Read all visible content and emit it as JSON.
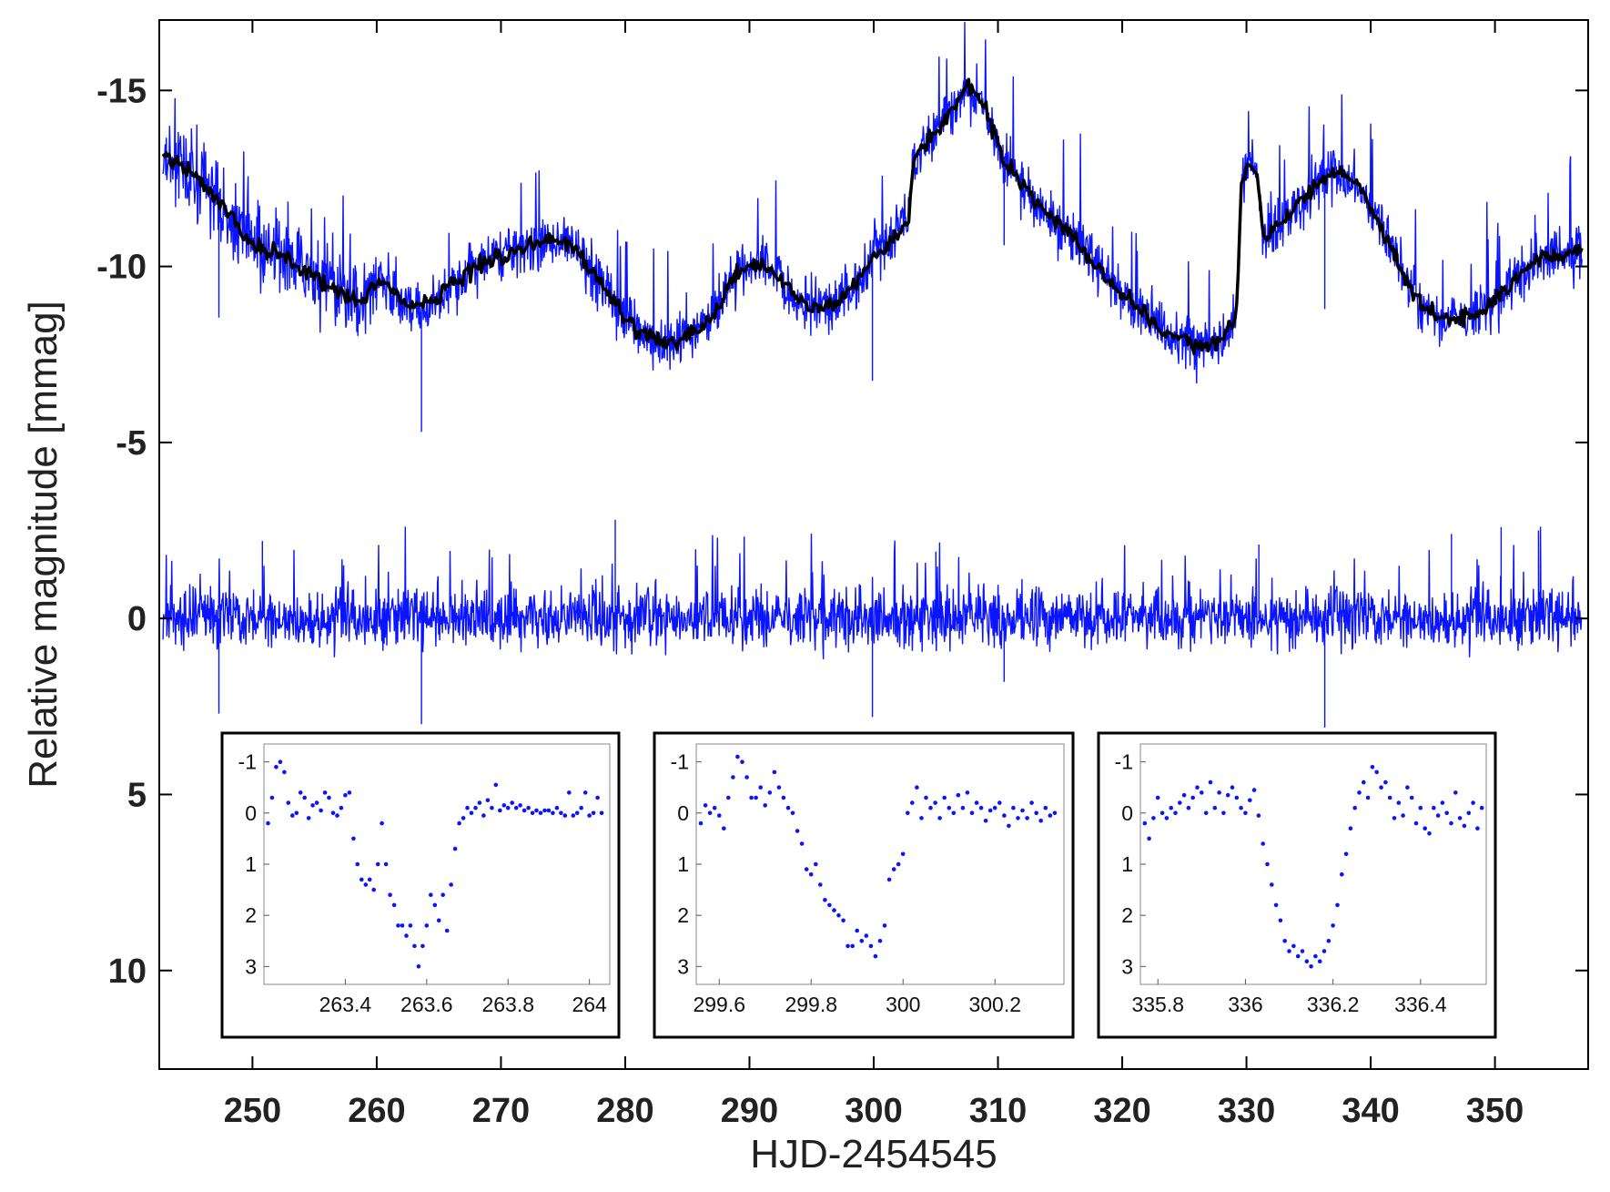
{
  "chart_data": [
    {
      "type": "line",
      "title": "",
      "xlabel": "HJD-2454545",
      "ylabel": "Relative magnitude [mmag]",
      "xlim": [
        242.5,
        357.5
      ],
      "ylim": [
        12.8,
        -17
      ],
      "y_inverted": true,
      "grid": false,
      "legend": "none",
      "xticks": [
        250,
        260,
        270,
        280,
        290,
        300,
        310,
        320,
        330,
        340,
        350
      ],
      "xtick_labels": [
        "250",
        "260",
        "270",
        "280",
        "290",
        "300",
        "310",
        "320",
        "330",
        "340",
        "350"
      ],
      "yticks": [
        -15,
        -10,
        -5,
        0,
        5,
        10
      ],
      "ytick_labels": [
        "-15",
        "-10",
        "-5",
        "0",
        "5",
        "10"
      ],
      "series": [
        {
          "role": "raw light curve",
          "color": "#0a14ff",
          "x": [
            242.8,
            245,
            247,
            249,
            250.5,
            252,
            254,
            256,
            258,
            259,
            260,
            261,
            262,
            263,
            264,
            265,
            266,
            268,
            270,
            272,
            274,
            275.5,
            277,
            278.5,
            280,
            281.5,
            283,
            284.5,
            286,
            287.5,
            288.5,
            290,
            291.5,
            292.5,
            294,
            295.5,
            297,
            298.5,
            300,
            301.5,
            302.8,
            303.2,
            304.5,
            306,
            307.5,
            309,
            310.5,
            312,
            314,
            316,
            318,
            320,
            322,
            324,
            326,
            328,
            329.2,
            329.6,
            330.2,
            330.8,
            331.4,
            333,
            335,
            337,
            339,
            341,
            343,
            344.5,
            346,
            348,
            349.5,
            351,
            352.5,
            354,
            356,
            357
          ],
          "y": [
            -13.2,
            -12.7,
            -12.0,
            -11.0,
            -10.5,
            -10.4,
            -9.9,
            -9.5,
            -9.1,
            -9.0,
            -9.6,
            -9.4,
            -9.0,
            -8.9,
            -8.9,
            -9.1,
            -9.5,
            -10.0,
            -10.3,
            -10.6,
            -10.8,
            -10.6,
            -10.0,
            -9.3,
            -8.5,
            -8.0,
            -7.8,
            -8.0,
            -8.2,
            -8.8,
            -9.6,
            -10.0,
            -10.0,
            -9.6,
            -9.0,
            -8.8,
            -9.0,
            -9.5,
            -10.2,
            -10.8,
            -11.3,
            -13.0,
            -13.6,
            -14.3,
            -15.1,
            -14.5,
            -13.0,
            -12.3,
            -11.5,
            -10.8,
            -10.0,
            -9.2,
            -8.6,
            -8.0,
            -7.7,
            -7.9,
            -8.6,
            -12.4,
            -12.9,
            -12.6,
            -10.8,
            -11.3,
            -12.1,
            -12.7,
            -12.3,
            -11.0,
            -9.5,
            -8.7,
            -8.5,
            -8.6,
            -8.8,
            -9.4,
            -9.9,
            -10.3,
            -10.4,
            -10.5
          ]
        },
        {
          "role": "smoothed fit",
          "color": "#000000",
          "x": [
            242.8,
            245,
            247,
            249,
            250.5,
            252,
            254,
            256,
            258,
            259,
            260,
            261,
            262,
            263,
            264,
            265,
            266,
            268,
            270,
            272,
            274,
            275.5,
            277,
            278.5,
            280,
            281.5,
            283,
            284.5,
            286,
            287.5,
            288.5,
            290,
            291.5,
            292.5,
            294,
            295.5,
            297,
            298.5,
            300,
            301.5,
            302.8,
            303.2,
            304.5,
            306,
            307.5,
            309,
            310.5,
            312,
            314,
            316,
            318,
            320,
            322,
            324,
            326,
            328,
            329.2,
            329.6,
            330.2,
            330.8,
            331.4,
            333,
            335,
            337,
            339,
            341,
            343,
            344.5,
            346,
            348,
            349.5,
            351,
            352.5,
            354,
            356,
            357
          ],
          "y": [
            -13.2,
            -12.7,
            -12.0,
            -11.0,
            -10.5,
            -10.4,
            -9.9,
            -9.5,
            -9.1,
            -9.0,
            -9.6,
            -9.4,
            -9.0,
            -8.9,
            -8.9,
            -9.1,
            -9.5,
            -10.0,
            -10.3,
            -10.6,
            -10.8,
            -10.6,
            -10.0,
            -9.3,
            -8.5,
            -8.0,
            -7.8,
            -8.0,
            -8.2,
            -8.8,
            -9.6,
            -10.0,
            -10.0,
            -9.6,
            -9.0,
            -8.8,
            -9.0,
            -9.5,
            -10.2,
            -10.8,
            -11.3,
            -13.0,
            -13.6,
            -14.3,
            -15.1,
            -14.5,
            -13.0,
            -12.3,
            -11.5,
            -10.8,
            -10.0,
            -9.2,
            -8.6,
            -8.0,
            -7.7,
            -7.9,
            -8.6,
            -12.4,
            -12.9,
            -12.6,
            -10.8,
            -11.3,
            -12.1,
            -12.7,
            -12.3,
            -11.0,
            -9.5,
            -8.7,
            -8.5,
            -8.6,
            -8.8,
            -9.4,
            -9.9,
            -10.3,
            -10.4,
            -10.5
          ]
        },
        {
          "role": "residuals",
          "color": "#0a14ff",
          "baseline": 0,
          "eclipse_dips": [
            [
              247.3,
              2.7
            ],
            [
              263.6,
              3.0
            ],
            [
              299.9,
              2.8
            ],
            [
              310.5,
              1.8
            ],
            [
              336.3,
              3.1
            ]
          ],
          "spikes": [
            [
              279.2,
              -2.8
            ],
            [
              250.8,
              -2.2
            ],
            [
              305,
              -1.9
            ],
            [
              331,
              -2.1
            ],
            [
              346.5,
              -2.4
            ],
            [
              350.5,
              -2.6
            ],
            [
              353.5,
              -2.5
            ]
          ]
        }
      ]
    },
    {
      "type": "scatter",
      "panel": "inset-1",
      "color": "#0a14ff",
      "xlim": [
        263.2,
        264.05
      ],
      "ylim": [
        -1.35,
        3.35
      ],
      "y_inverted": true,
      "xticks": [
        263.4,
        263.6,
        263.8,
        264
      ],
      "xtick_labels": [
        "263.4",
        "263.6",
        "263.8",
        "264"
      ],
      "yticks": [
        -1,
        0,
        1,
        2,
        3
      ],
      "ytick_labels": [
        "-1",
        "0",
        "1",
        "2",
        "3"
      ],
      "x": [
        263.21,
        263.22,
        263.23,
        263.24,
        263.25,
        263.26,
        263.27,
        263.28,
        263.29,
        263.3,
        263.31,
        263.32,
        263.33,
        263.34,
        263.35,
        263.36,
        263.37,
        263.38,
        263.39,
        263.4,
        263.41,
        263.42,
        263.43,
        263.44,
        263.45,
        263.46,
        263.47,
        263.48,
        263.49,
        263.5,
        263.51,
        263.52,
        263.53,
        263.54,
        263.55,
        263.56,
        263.57,
        263.58,
        263.59,
        263.6,
        263.61,
        263.62,
        263.63,
        263.64,
        263.65,
        263.66,
        263.67,
        263.68,
        263.69,
        263.7,
        263.71,
        263.72,
        263.73,
        263.74,
        263.75,
        263.76,
        263.77,
        263.78,
        263.79,
        263.8,
        263.81,
        263.82,
        263.83,
        263.84,
        263.85,
        263.86,
        263.87,
        263.88,
        263.89,
        263.9,
        263.91,
        263.92,
        263.93,
        263.94,
        263.95,
        263.96,
        263.97,
        263.98,
        263.99,
        264.0,
        264.01,
        264.02,
        264.03
      ],
      "y": [
        0.2,
        -0.3,
        -0.9,
        -1.0,
        -0.8,
        -0.2,
        0.05,
        0.0,
        -0.4,
        -0.3,
        0.1,
        -0.15,
        -0.2,
        -0.05,
        -0.4,
        -0.3,
        0.0,
        0.05,
        -0.1,
        -0.35,
        -0.4,
        0.5,
        1.0,
        1.3,
        1.4,
        1.3,
        1.5,
        1.0,
        0.2,
        1.0,
        1.6,
        1.8,
        2.2,
        2.2,
        2.4,
        2.2,
        2.6,
        3.0,
        2.6,
        2.2,
        1.6,
        1.8,
        2.1,
        1.6,
        2.3,
        1.4,
        0.7,
        0.2,
        0.1,
        -0.1,
        0.0,
        -0.1,
        -0.2,
        0.05,
        -0.25,
        -0.1,
        -0.55,
        -0.05,
        -0.15,
        -0.1,
        -0.2,
        -0.1,
        -0.15,
        -0.05,
        -0.1,
        0.0,
        -0.05,
        0.0,
        -0.05,
        -0.05,
        0.0,
        -0.1,
        0.0,
        0.05,
        -0.4,
        0.05,
        0.0,
        -0.1,
        -0.4,
        0.05,
        0.0,
        -0.3,
        0.0
      ]
    },
    {
      "type": "scatter",
      "panel": "inset-2",
      "color": "#0a14ff",
      "xlim": [
        299.55,
        300.35
      ],
      "ylim": [
        -1.35,
        3.35
      ],
      "y_inverted": true,
      "xticks": [
        299.6,
        299.8,
        300,
        300.2
      ],
      "xtick_labels": [
        "299.6",
        "299.8",
        "300",
        "300.2"
      ],
      "yticks": [
        -1,
        0,
        1,
        2,
        3
      ],
      "ytick_labels": [
        "-1",
        "0",
        "1",
        "2",
        "3"
      ],
      "x": [
        299.56,
        299.57,
        299.58,
        299.59,
        299.6,
        299.61,
        299.62,
        299.63,
        299.64,
        299.65,
        299.66,
        299.67,
        299.68,
        299.69,
        299.7,
        299.71,
        299.72,
        299.73,
        299.74,
        299.75,
        299.76,
        299.77,
        299.78,
        299.79,
        299.8,
        299.81,
        299.82,
        299.83,
        299.84,
        299.85,
        299.86,
        299.87,
        299.88,
        299.89,
        299.9,
        299.91,
        299.92,
        299.93,
        299.94,
        299.95,
        299.96,
        299.97,
        299.98,
        299.99,
        300.0,
        300.01,
        300.02,
        300.03,
        300.04,
        300.05,
        300.06,
        300.07,
        300.08,
        300.09,
        300.1,
        300.11,
        300.12,
        300.13,
        300.14,
        300.15,
        300.16,
        300.17,
        300.18,
        300.19,
        300.2,
        300.21,
        300.22,
        300.23,
        300.24,
        300.25,
        300.26,
        300.27,
        300.28,
        300.29,
        300.3,
        300.31,
        300.32,
        300.33
      ],
      "y": [
        0.2,
        -0.15,
        0.0,
        -0.1,
        0.05,
        0.3,
        -0.3,
        -0.7,
        -1.1,
        -1.0,
        -0.7,
        -0.3,
        -0.3,
        -0.5,
        -0.15,
        -0.4,
        -0.8,
        -0.5,
        -0.3,
        -0.1,
        0.0,
        0.35,
        0.6,
        1.1,
        1.2,
        1.0,
        1.4,
        1.7,
        1.8,
        1.9,
        2.0,
        2.1,
        2.6,
        2.6,
        2.3,
        2.5,
        2.4,
        2.6,
        2.8,
        2.5,
        2.2,
        1.3,
        1.1,
        1.0,
        0.8,
        0.0,
        -0.2,
        -0.5,
        0.1,
        -0.3,
        -0.1,
        -0.2,
        0.1,
        -0.3,
        -0.1,
        0.0,
        -0.35,
        -0.1,
        -0.4,
        0.0,
        -0.2,
        -0.1,
        0.15,
        -0.05,
        -0.1,
        -0.2,
        0.05,
        0.25,
        -0.1,
        0.1,
        -0.05,
        0.1,
        -0.2,
        0.0,
        0.15,
        -0.1,
        0.05,
        0.0
      ]
    },
    {
      "type": "scatter",
      "panel": "inset-3",
      "color": "#0a14ff",
      "xlim": [
        335.76,
        336.55
      ],
      "ylim": [
        -1.35,
        3.35
      ],
      "y_inverted": true,
      "xticks": [
        335.8,
        336,
        336.2,
        336.4
      ],
      "xtick_labels": [
        "335.8",
        "336",
        "336.2",
        "336.4"
      ],
      "yticks": [
        -1,
        0,
        1,
        2,
        3
      ],
      "ytick_labels": [
        "-1",
        "0",
        "1",
        "2",
        "3"
      ],
      "x": [
        335.77,
        335.78,
        335.79,
        335.8,
        335.81,
        335.82,
        335.83,
        335.84,
        335.85,
        335.86,
        335.87,
        335.88,
        335.89,
        335.9,
        335.91,
        335.92,
        335.93,
        335.94,
        335.95,
        335.96,
        335.97,
        335.98,
        335.99,
        336.0,
        336.01,
        336.02,
        336.03,
        336.04,
        336.05,
        336.06,
        336.07,
        336.08,
        336.09,
        336.1,
        336.11,
        336.12,
        336.13,
        336.14,
        336.15,
        336.16,
        336.17,
        336.18,
        336.19,
        336.2,
        336.21,
        336.22,
        336.23,
        336.24,
        336.25,
        336.26,
        336.27,
        336.28,
        336.29,
        336.3,
        336.31,
        336.32,
        336.33,
        336.34,
        336.35,
        336.36,
        336.37,
        336.38,
        336.39,
        336.4,
        336.41,
        336.42,
        336.43,
        336.44,
        336.45,
        336.46,
        336.47,
        336.48,
        336.49,
        336.5,
        336.51,
        336.52,
        336.53,
        336.54
      ],
      "y": [
        0.2,
        0.5,
        0.1,
        -0.3,
        0.0,
        0.1,
        -0.1,
        0.0,
        -0.2,
        -0.35,
        -0.1,
        -0.3,
        -0.5,
        -0.4,
        0.0,
        -0.6,
        -0.1,
        -0.4,
        0.0,
        -0.35,
        -0.5,
        -0.3,
        -0.1,
        0.0,
        -0.25,
        -0.45,
        0.05,
        0.6,
        1.0,
        1.4,
        1.8,
        2.1,
        2.5,
        2.7,
        2.6,
        2.8,
        2.7,
        2.9,
        3.0,
        2.8,
        2.9,
        2.7,
        2.5,
        2.2,
        1.8,
        1.2,
        0.8,
        0.3,
        -0.1,
        -0.4,
        -0.6,
        -0.3,
        -0.9,
        -0.8,
        -0.5,
        -0.6,
        -0.3,
        0.1,
        -0.2,
        0.05,
        -0.5,
        -0.3,
        0.2,
        -0.1,
        0.3,
        0.4,
        -0.1,
        0.05,
        -0.2,
        0.0,
        0.2,
        -0.4,
        0.1,
        0.25,
        0.0,
        -0.2,
        0.3,
        -0.1
      ]
    }
  ]
}
